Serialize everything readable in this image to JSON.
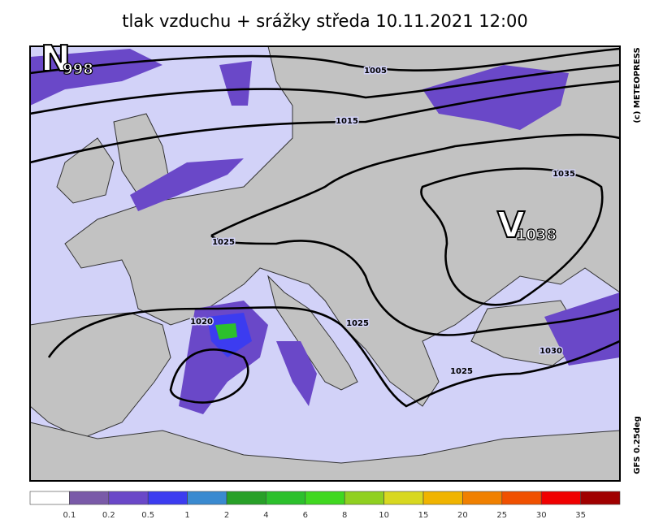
{
  "header": {
    "title": "tlak vzduchu + srážky  středa 10.11.2021 12:00"
  },
  "map": {
    "pressure_centers": [
      {
        "letter": "N",
        "value": "998"
      },
      {
        "letter": "V",
        "value": "1038"
      }
    ],
    "isobar_labels": [
      "1005",
      "1015",
      "1035",
      "1025",
      "1025",
      "1020",
      "1030",
      "1025"
    ],
    "credits": [
      "(c) METEOPRESS",
      "GFS 0.25deg"
    ]
  },
  "legend": {
    "colors": [
      "#ffffff",
      "#7a5aa8",
      "#6a48c8",
      "#3c3cf0",
      "#3a8ad0",
      "#28a028",
      "#2cc02c",
      "#40d820",
      "#90d020",
      "#d8d820",
      "#f0b400",
      "#f08000",
      "#f05000",
      "#f00000",
      "#a00000"
    ],
    "labels": [
      "0.1",
      "0.2",
      "0.5",
      "1",
      "2",
      "4",
      "6",
      "8",
      "10",
      "15",
      "20",
      "25",
      "30",
      "35"
    ]
  }
}
